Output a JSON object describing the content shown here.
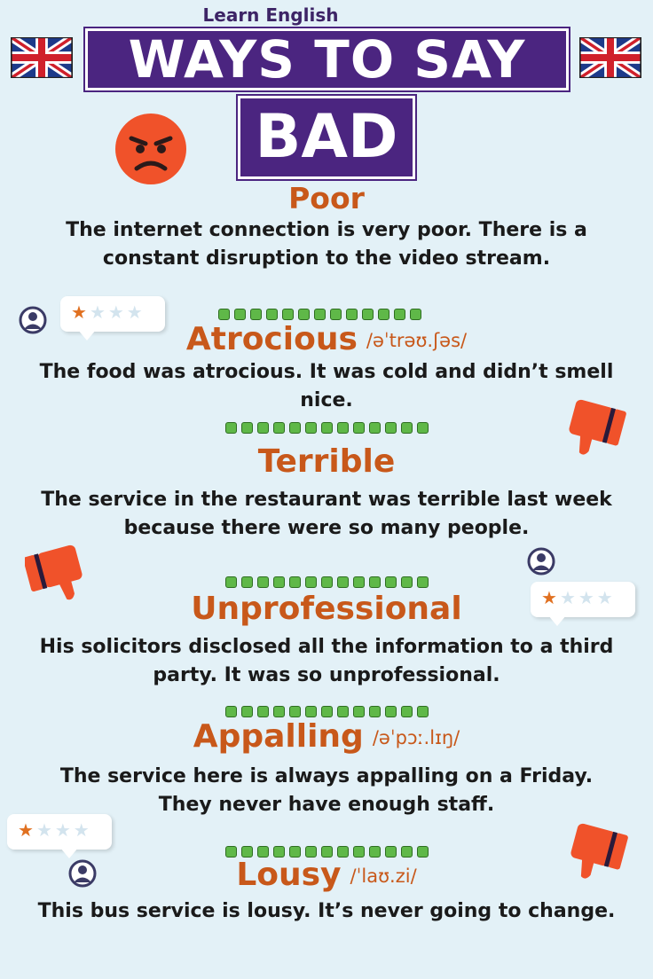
{
  "header": {
    "brand": "Learn English",
    "title": "WAYS TO SAY",
    "word": "BAD"
  },
  "entries": [
    {
      "word": "Poor",
      "phonetic": "",
      "example": "The internet connection is very poor. There is a constant disruption to the video stream."
    },
    {
      "word": "Atrocious",
      "phonetic": "/əˈtrəʊ.ʃəs/",
      "example": "The food was atrocious. It was cold and didn’t smell nice."
    },
    {
      "word": "Terrible",
      "phonetic": "",
      "example": "The service in the restaurant was terrible last week because there were so many people."
    },
    {
      "word": "Unprofessional",
      "phonetic": "",
      "example": "His solicitors disclosed all the information to a third party. It was so unprofessional."
    },
    {
      "word": "Appalling",
      "phonetic": "/əˈpɔː.lɪŋ/",
      "example": "The service here is always appalling on a Friday. They never have enough staff."
    },
    {
      "word": "Lousy",
      "phonetic": "/ˈlaʊ.zi/",
      "example": "This bus service is lousy. It’s never going to change."
    }
  ],
  "ratings": [
    {
      "stars_filled": 1,
      "stars_total": 4
    },
    {
      "stars_filled": 1,
      "stars_total": 4
    },
    {
      "stars_filled": 1,
      "stars_total": 4
    }
  ],
  "icons": {
    "flag": "uk-flag-icon",
    "face": "angry-face-icon",
    "thumb": "thumbs-down-icon",
    "avatar": "user-avatar-icon"
  },
  "colors": {
    "background": "#e3f1f7",
    "banner": "#4b2580",
    "heading": "#c8581a",
    "dots": "#5fb848",
    "thumb": "#f0522a",
    "star_on": "#e07020"
  }
}
